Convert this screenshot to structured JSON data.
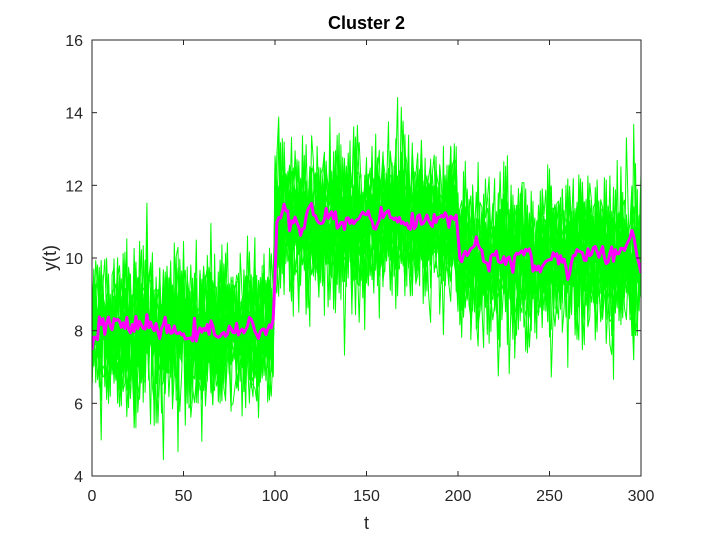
{
  "chart_data": {
    "type": "line",
    "title": "Cluster 2",
    "xlabel": "t",
    "ylabel": "y(t)",
    "xlim": [
      0,
      300
    ],
    "ylim": [
      4,
      16
    ],
    "xticks": [
      0,
      50,
      100,
      150,
      200,
      250,
      300
    ],
    "yticks": [
      4,
      6,
      8,
      10,
      12,
      14,
      16
    ],
    "grid": false,
    "legend": "none",
    "colors": {
      "members": "#00ff00",
      "centroid": "#ff00ff",
      "axes": "#262626"
    },
    "regimes": [
      {
        "t_start": 0,
        "t_end": 100,
        "level": 8.0
      },
      {
        "t_start": 100,
        "t_end": 200,
        "level": 11.0
      },
      {
        "t_start": 200,
        "t_end": 300,
        "level": 10.0
      }
    ],
    "member_count": 20,
    "series": [
      {
        "role": "centroid",
        "x": [
          0,
          5,
          10,
          15,
          20,
          25,
          30,
          35,
          40,
          45,
          50,
          55,
          60,
          65,
          70,
          75,
          80,
          85,
          90,
          95,
          99,
          101,
          105,
          110,
          115,
          120,
          125,
          130,
          135,
          140,
          145,
          150,
          155,
          160,
          165,
          170,
          175,
          180,
          185,
          190,
          195,
          199,
          201,
          205,
          210,
          215,
          220,
          225,
          230,
          235,
          240,
          245,
          250,
          255,
          260,
          265,
          270,
          275,
          280,
          285,
          290,
          295,
          300
        ],
        "values": [
          7.7,
          8.1,
          8.2,
          8.3,
          8.0,
          8.1,
          8.2,
          8.0,
          8.1,
          7.9,
          7.9,
          8.0,
          7.8,
          8.1,
          7.9,
          7.9,
          8.0,
          8.1,
          8.0,
          8.1,
          8.2,
          11.1,
          11.2,
          11.0,
          10.8,
          11.3,
          11.0,
          11.2,
          10.9,
          11.0,
          11.1,
          11.3,
          11.0,
          11.2,
          11.1,
          10.9,
          11.0,
          11.1,
          10.9,
          11.2,
          11.0,
          11.3,
          10.0,
          10.2,
          10.3,
          9.8,
          10.1,
          10.0,
          9.9,
          10.2,
          10.0,
          9.6,
          10.0,
          10.1,
          9.7,
          10.2,
          10.0,
          10.3,
          9.9,
          10.0,
          10.1,
          10.8,
          9.6
        ]
      }
    ]
  }
}
